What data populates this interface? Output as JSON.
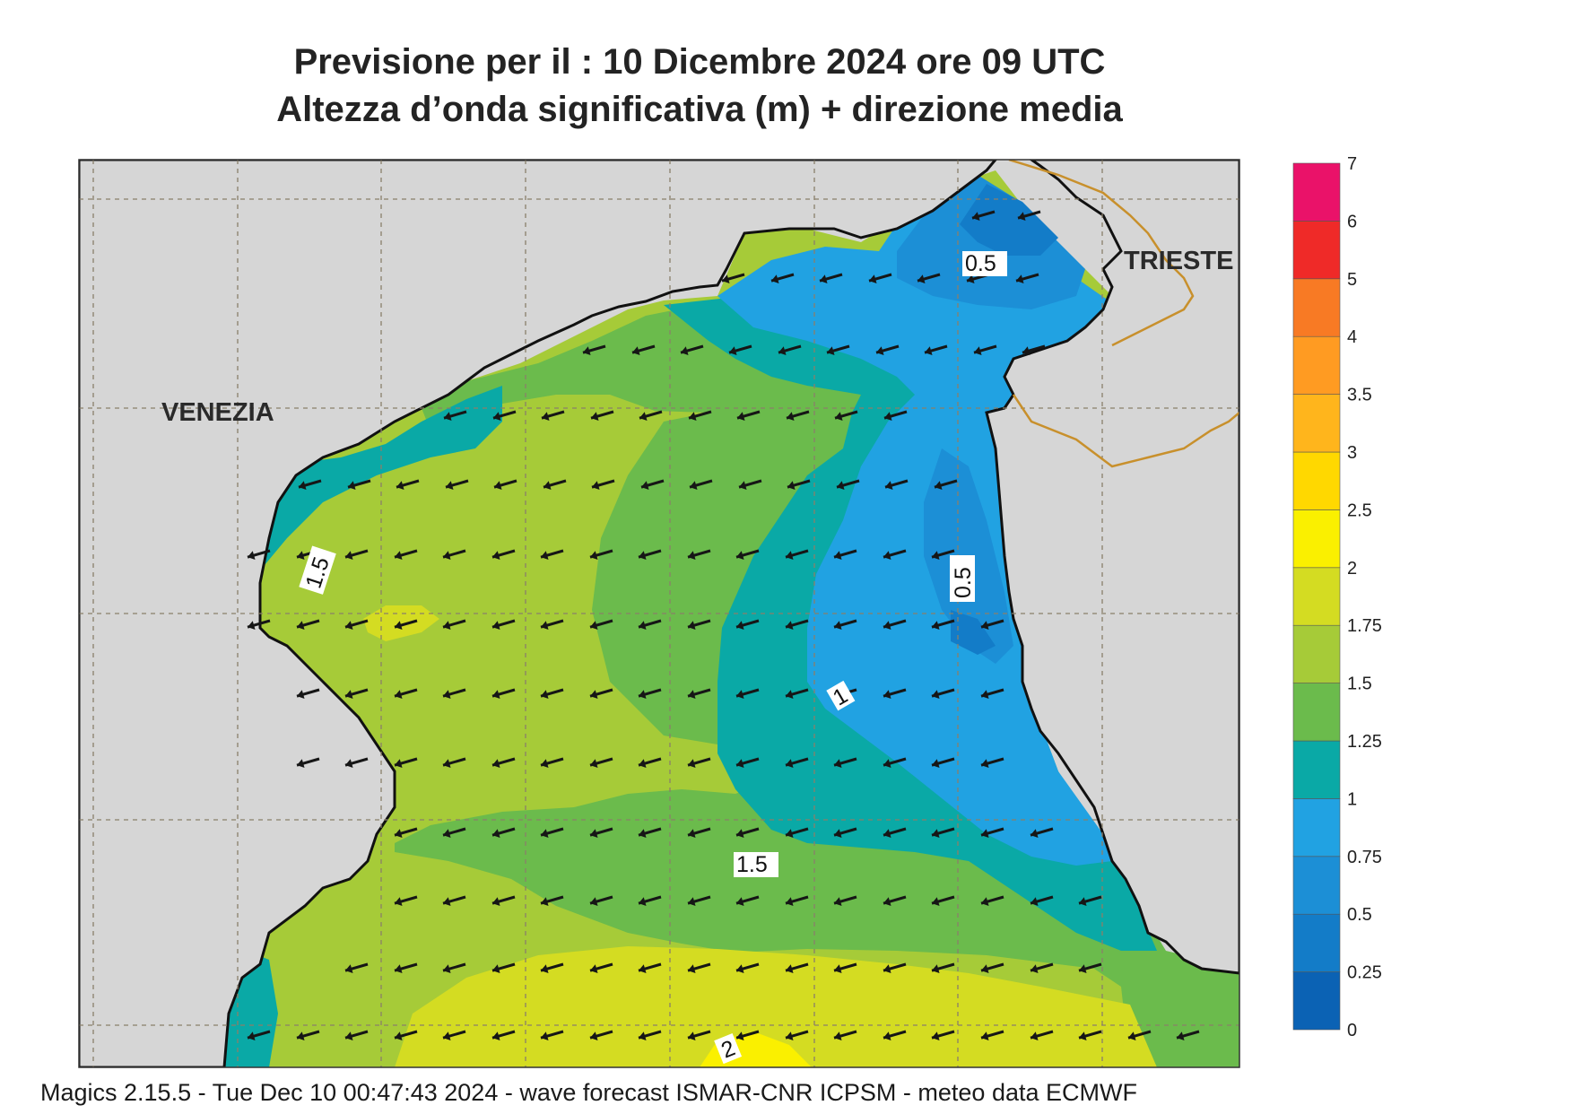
{
  "title": {
    "line1": "Previsione per il  :  10 Dicembre  2024   ore 09 UTC",
    "line2": "Altezza d’onda significativa (m) + direzione media"
  },
  "footer": "Magics 2.15.5 - Tue Dec 10 00:47:43 2024 - wave forecast  ISMAR-CNR  ICPSM - meteo data   ECMWF",
  "cities": {
    "venezia": "VENEZIA",
    "trieste": "TRIESTE"
  },
  "contour_labels": [
    "0.5",
    "0.5",
    "1",
    "1.5",
    "1.5",
    "2"
  ],
  "legend": {
    "levels": [
      "0",
      "0.25",
      "0.5",
      "0.75",
      "1",
      "1.25",
      "1.5",
      "1.75",
      "2",
      "2.5",
      "3",
      "3.5",
      "4",
      "5",
      "6",
      "7"
    ],
    "colors": [
      "#0b62b4",
      "#137cc8",
      "#1c8fd6",
      "#21a2e2",
      "#0aa9a6",
      "#6bbb4c",
      "#a6cb38",
      "#d4dc22",
      "#faf000",
      "#ffd800",
      "#ffb51c",
      "#ff9b22",
      "#f87a24",
      "#ef2a28",
      "#ea1269"
    ]
  },
  "colors": {
    "land": "#d6d6d6",
    "coast": "#111111",
    "border": "#c8902c",
    "arrow": "#161616"
  }
}
